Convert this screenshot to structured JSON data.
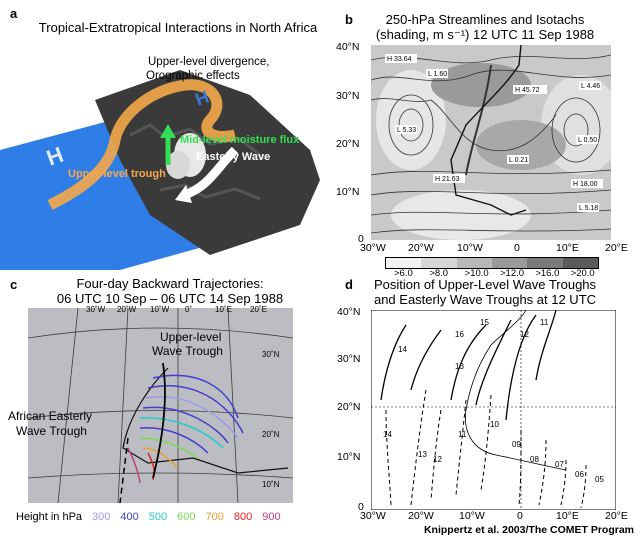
{
  "panel_a": {
    "letter": "a",
    "title": "Tropical-Extratropical Interactions in North Africa",
    "labels": {
      "divergence_line1": "Upper-level divergence,",
      "divergence_line2": "Orographic effects",
      "moisture": "Mid-level moisture flux",
      "easterly": "Easterly Wave",
      "trough": "Upper-level trough",
      "high_left": "H",
      "high_right": "H"
    },
    "colors": {
      "ocean": "#2f7de6",
      "trough": "#f5a94a",
      "moisture": "#33dd55"
    }
  },
  "panel_b": {
    "letter": "b",
    "title_line1": "250-hPa Streamlines and Isotachs",
    "title_line2": "(shading, m s⁻¹) 12 UTC 11 Sep 1988",
    "y_ticks": [
      "40°N",
      "30°N",
      "20°N",
      "10°N",
      "0"
    ],
    "x_ticks": [
      "30°W",
      "20°W",
      "10°W",
      "0",
      "10°E",
      "20°E"
    ],
    "legend": [
      ">6.0",
      ">8.0",
      ">10.0",
      ">12.0",
      ">16.0",
      ">20.0"
    ],
    "legend_colors": [
      "#f2f2f2",
      "#d6d6d6",
      "#b8b8b8",
      "#9a9a9a",
      "#7a7a7a",
      "#5a5a5a"
    ],
    "centers": [
      "H 33.64",
      "L 1.60",
      "H 45.72",
      "L 4.46",
      "L 5.33",
      "L 0.50",
      "L 0.21",
      "H 21.63",
      "H 18.00",
      "L 5.18"
    ]
  },
  "panel_c": {
    "letter": "c",
    "title_line1": "Four-day Backward Trajectories:",
    "title_line2": "06 UTC 10 Sep – 06 UTC 14 Sep 1988",
    "lon_labels": [
      "30˚W",
      "20˚W",
      "10˚W",
      "0˚",
      "10˚E",
      "20˚E"
    ],
    "lat_labels": [
      "30˚N",
      "20˚N",
      "10˚N"
    ],
    "upper_trough_line1": "Upper-level",
    "upper_trough_line2": "Wave Trough",
    "aew_line1": "African Easterly",
    "aew_line2": "Wave Trough",
    "height_label": "Height in hPa",
    "heights": [
      {
        "v": "300",
        "c": "#9a9ae8"
      },
      {
        "v": "400",
        "c": "#3f3fd0"
      },
      {
        "v": "500",
        "c": "#22cccc"
      },
      {
        "v": "600",
        "c": "#77dd55"
      },
      {
        "v": "700",
        "c": "#e8a030"
      },
      {
        "v": "800",
        "c": "#e02020"
      },
      {
        "v": "900",
        "c": "#c04080"
      }
    ]
  },
  "panel_d": {
    "letter": "d",
    "title_line1": "Position of Upper-Level Wave Troughs",
    "title_line2": "and Easterly Wave Troughs at 12 UTC",
    "y_ticks": [
      "40°N",
      "30°N",
      "20°N",
      "10°N",
      "0"
    ],
    "x_ticks": [
      "30°W",
      "20°W",
      "10°W",
      "0",
      "10°E",
      "20°E"
    ],
    "solid_labels": [
      "16",
      "15",
      "14",
      "13",
      "12",
      "11"
    ],
    "dashed_labels": [
      "14",
      "13",
      "12",
      "11",
      "10",
      "09",
      "08",
      "07",
      "06",
      "05"
    ]
  },
  "credit": "Knippertz et al. 2003/The COMET Program"
}
